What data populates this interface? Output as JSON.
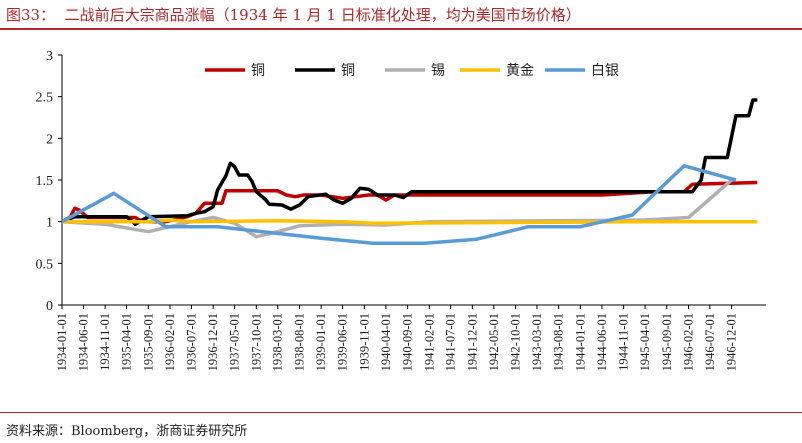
{
  "header": {
    "title": "图33：  二战前后大宗商品涨幅（1934 年 1 月 1 日标准化处理，均为美国市场价格）"
  },
  "footer": {
    "source": "资料来源：Bloomberg，浙商证券研究所"
  },
  "chart_data": {
    "type": "line",
    "title": "",
    "xlabel": "",
    "ylabel": "",
    "ylim": [
      0,
      3
    ],
    "yticks": [
      "0",
      "0.5",
      "1",
      "1.5",
      "2",
      "2.5",
      "3"
    ],
    "xlim": [
      "1934-01-01",
      "1947-08-01"
    ],
    "xticks": [
      "1934-01-01",
      "1934-06-01",
      "1934-11-01",
      "1935-04-01",
      "1935-09-01",
      "1936-02-01",
      "1936-07-01",
      "1936-12-01",
      "1937-05-01",
      "1937-10-01",
      "1938-03-01",
      "1938-08-01",
      "1939-01-01",
      "1939-06-01",
      "1939-11-01",
      "1940-04-01",
      "1940-09-01",
      "1941-02-01",
      "1941-07-01",
      "1941-12-01",
      "1942-05-01",
      "1942-10-01",
      "1943-03-01",
      "1943-08-01",
      "1944-01-01",
      "1944-06-01",
      "1944-11-01",
      "1945-04-01",
      "1945-09-01",
      "1946-02-01",
      "1946-07-01",
      "1946-12-01"
    ],
    "grid": false,
    "legend_position": "top",
    "series": [
      {
        "name": "铜",
        "color": "#c00000",
        "points": [
          [
            "1934-01-01",
            1.0
          ],
          [
            "1934-03-01",
            1.06
          ],
          [
            "1934-04-01",
            1.16
          ],
          [
            "1934-05-01",
            1.14
          ],
          [
            "1934-07-01",
            1.05
          ],
          [
            "1935-01-01",
            1.05
          ],
          [
            "1935-06-01",
            1.05
          ],
          [
            "1935-07-01",
            1.02
          ],
          [
            "1935-09-01",
            1.0
          ],
          [
            "1936-01-01",
            1.0
          ],
          [
            "1936-06-01",
            1.06
          ],
          [
            "1936-08-01",
            1.1
          ],
          [
            "1936-10-01",
            1.22
          ],
          [
            "1937-02-01",
            1.22
          ],
          [
            "1937-03-01",
            1.37
          ],
          [
            "1937-09-01",
            1.37
          ],
          [
            "1938-03-01",
            1.37
          ],
          [
            "1938-05-01",
            1.32
          ],
          [
            "1938-07-01",
            1.3
          ],
          [
            "1938-09-01",
            1.32
          ],
          [
            "1939-01-01",
            1.32
          ],
          [
            "1939-06-01",
            1.28
          ],
          [
            "1939-09-01",
            1.3
          ],
          [
            "1939-12-01",
            1.32
          ],
          [
            "1940-02-01",
            1.32
          ],
          [
            "1940-04-01",
            1.26
          ],
          [
            "1940-06-01",
            1.32
          ],
          [
            "1944-06-01",
            1.32
          ],
          [
            "1945-06-01",
            1.36
          ],
          [
            "1946-01-01",
            1.36
          ],
          [
            "1946-03-01",
            1.45
          ],
          [
            "1947-06-01",
            1.47
          ]
        ]
      },
      {
        "name": "铜",
        "color": "#000000",
        "points": [
          [
            "1934-01-01",
            1.0
          ],
          [
            "1934-04-01",
            1.06
          ],
          [
            "1935-04-01",
            1.06
          ],
          [
            "1935-06-01",
            0.97
          ],
          [
            "1935-09-01",
            1.06
          ],
          [
            "1936-06-01",
            1.07
          ],
          [
            "1936-08-01",
            1.1
          ],
          [
            "1936-10-01",
            1.12
          ],
          [
            "1936-12-01",
            1.18
          ],
          [
            "1937-01-01",
            1.38
          ],
          [
            "1937-03-01",
            1.55
          ],
          [
            "1937-04-01",
            1.7
          ],
          [
            "1937-05-01",
            1.66
          ],
          [
            "1937-06-01",
            1.56
          ],
          [
            "1937-08-01",
            1.56
          ],
          [
            "1937-09-01",
            1.48
          ],
          [
            "1937-10-01",
            1.36
          ],
          [
            "1937-12-01",
            1.27
          ],
          [
            "1938-01-01",
            1.21
          ],
          [
            "1938-04-01",
            1.2
          ],
          [
            "1938-06-01",
            1.15
          ],
          [
            "1938-08-01",
            1.2
          ],
          [
            "1938-10-01",
            1.3
          ],
          [
            "1939-02-01",
            1.33
          ],
          [
            "1939-04-01",
            1.26
          ],
          [
            "1939-06-01",
            1.22
          ],
          [
            "1939-08-01",
            1.28
          ],
          [
            "1939-10-01",
            1.4
          ],
          [
            "1939-12-01",
            1.39
          ],
          [
            "1940-02-01",
            1.32
          ],
          [
            "1940-06-01",
            1.32
          ],
          [
            "1940-08-01",
            1.29
          ],
          [
            "1940-10-01",
            1.36
          ],
          [
            "1945-06-01",
            1.36
          ],
          [
            "1946-03-01",
            1.36
          ],
          [
            "1946-05-01",
            1.5
          ],
          [
            "1946-06-01",
            1.77
          ],
          [
            "1946-11-01",
            1.77
          ],
          [
            "1947-01-01",
            2.27
          ],
          [
            "1947-04-01",
            2.27
          ],
          [
            "1947-05-01",
            2.46
          ],
          [
            "1947-06-01",
            2.46
          ]
        ]
      },
      {
        "name": "锡",
        "color": "#b0b0b0",
        "points": [
          [
            "1934-01-01",
            1.0
          ],
          [
            "1934-11-01",
            0.97
          ],
          [
            "1935-09-01",
            0.88
          ],
          [
            "1936-07-01",
            1.0
          ],
          [
            "1936-12-01",
            1.05
          ],
          [
            "1937-05-01",
            0.98
          ],
          [
            "1937-10-01",
            0.82
          ],
          [
            "1938-03-01",
            0.88
          ],
          [
            "1938-08-01",
            0.95
          ],
          [
            "1939-06-01",
            0.97
          ],
          [
            "1940-04-01",
            0.96
          ],
          [
            "1941-02-01",
            1.0
          ],
          [
            "1945-04-01",
            1.02
          ],
          [
            "1946-02-01",
            1.05
          ],
          [
            "1946-12-01",
            1.5
          ]
        ]
      },
      {
        "name": "黄金",
        "color": "#ffc000",
        "points": [
          [
            "1934-01-01",
            1.0
          ],
          [
            "1935-09-01",
            1.0
          ],
          [
            "1936-02-01",
            1.02
          ],
          [
            "1936-07-01",
            1.0
          ],
          [
            "1938-03-01",
            1.01
          ],
          [
            "1939-06-01",
            1.0
          ],
          [
            "1940-01-01",
            0.98
          ],
          [
            "1945-04-01",
            1.0
          ],
          [
            "1947-06-01",
            1.0
          ]
        ]
      },
      {
        "name": "白银",
        "color": "#5b9bd5",
        "points": [
          [
            "1934-01-01",
            1.0
          ],
          [
            "1935-01-01",
            1.34
          ],
          [
            "1936-01-01",
            0.94
          ],
          [
            "1937-01-01",
            0.94
          ],
          [
            "1938-01-01",
            0.87
          ],
          [
            "1939-01-01",
            0.8
          ],
          [
            "1940-01-01",
            0.74
          ],
          [
            "1941-01-01",
            0.74
          ],
          [
            "1942-01-01",
            0.79
          ],
          [
            "1943-01-01",
            0.94
          ],
          [
            "1944-01-01",
            0.94
          ],
          [
            "1945-01-01",
            1.08
          ],
          [
            "1946-01-01",
            1.67
          ],
          [
            "1947-01-01",
            1.5
          ]
        ]
      }
    ]
  }
}
